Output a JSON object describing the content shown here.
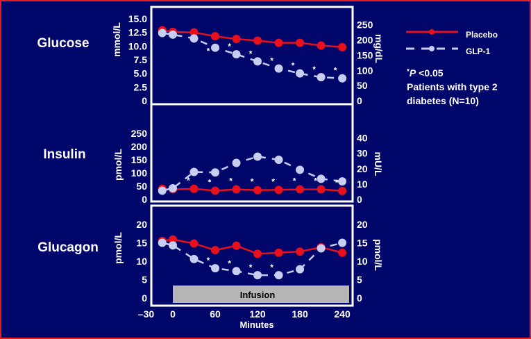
{
  "chart_data": [
    {
      "type": "line",
      "name": "glucose",
      "title": "Glucose",
      "ylabel_left": "mmol/L",
      "ylabel_right": "mg/dL",
      "yticks_left": [
        "15.0",
        "12.5",
        "10.0",
        "7.5",
        "5.0",
        "2.5",
        "0"
      ],
      "yticks_right": [
        "250",
        "200",
        "150",
        "100",
        "50",
        "0"
      ],
      "ylim_left": [
        0,
        15
      ],
      "ylim_right": [
        0,
        270
      ],
      "x": [
        -15,
        0,
        30,
        60,
        90,
        120,
        150,
        180,
        210,
        240
      ],
      "series": [
        {
          "name": "Placebo",
          "values": [
            12.9,
            12.6,
            12.5,
            11.8,
            11.3,
            11.0,
            10.6,
            10.6,
            10.1,
            9.8
          ]
        },
        {
          "name": "GLP-1",
          "values": [
            12.4,
            12.1,
            11.4,
            9.7,
            8.5,
            7.2,
            5.9,
            5.0,
            4.3,
            4.1
          ]
        }
      ],
      "significant_x": [
        60,
        90,
        120,
        150,
        180,
        210,
        240
      ]
    },
    {
      "type": "line",
      "name": "insulin",
      "title": "Insulin",
      "ylabel_left": "pmol/L",
      "ylabel_right": "mU/L",
      "yticks_left": [
        "250",
        "200",
        "150",
        "100",
        "50",
        "0"
      ],
      "yticks_right": [
        "40",
        "30",
        "20",
        "10",
        "0"
      ],
      "ylim_left": [
        0,
        250
      ],
      "ylim_right": [
        0,
        43
      ],
      "x": [
        -15,
        0,
        30,
        60,
        90,
        120,
        150,
        180,
        210,
        240
      ],
      "series": [
        {
          "name": "Placebo",
          "values": [
            40,
            38,
            40,
            33,
            38,
            35,
            36,
            38,
            38,
            32
          ]
        },
        {
          "name": "GLP-1",
          "values": [
            33,
            42,
            104,
            102,
            138,
            162,
            150,
            112,
            78,
            68
          ]
        }
      ],
      "significant_x": [
        30,
        60,
        90,
        120,
        150,
        180,
        210,
        240
      ]
    },
    {
      "type": "line",
      "name": "glucagon",
      "title": "Glucagon",
      "ylabel_left": "pmol/L",
      "ylabel_right": "pmol/L",
      "yticks_left": [
        "20",
        "15",
        "10",
        "5",
        "0"
      ],
      "yticks_right": [
        "20",
        "15",
        "10",
        "5",
        "0"
      ],
      "ylim_left": [
        0,
        20
      ],
      "ylim_right": [
        0,
        20
      ],
      "x": [
        -15,
        0,
        30,
        60,
        90,
        120,
        150,
        180,
        210,
        240
      ],
      "series": [
        {
          "name": "Placebo",
          "values": [
            15.5,
            15.9,
            14.8,
            13.0,
            14.2,
            12.0,
            12.3,
            12.6,
            13.8,
            12.3
          ]
        },
        {
          "name": "GLP-1",
          "values": [
            15.0,
            14.3,
            10.6,
            8.1,
            7.3,
            6.2,
            6.2,
            7.8,
            13.5,
            15.0
          ]
        }
      ],
      "significant_x": [
        60,
        90,
        120,
        150
      ],
      "annotation": "Infusion",
      "xlabel": "Minutes",
      "xticks": [
        "–30",
        "0",
        "60",
        "120",
        "180",
        "240"
      ]
    }
  ],
  "legend": {
    "placebo": "Placebo",
    "glp1": "GLP-1",
    "pvalue_star": "*",
    "pvalue_p": "P",
    "pvalue_rest": " <0.05",
    "note_line1": "Patients with type 2",
    "note_line2": "diabetes (N=10)"
  },
  "colors": {
    "placebo": "#e8101c",
    "glp1": "#c8cdf2",
    "background": "#00066a",
    "border": "#e31e24",
    "infusion_bar": "#b5b5b5"
  }
}
